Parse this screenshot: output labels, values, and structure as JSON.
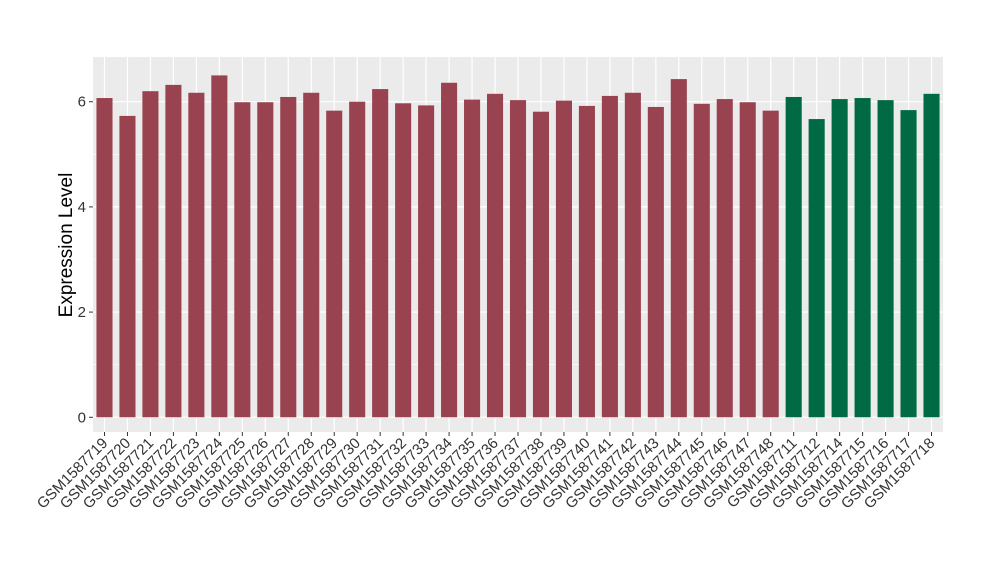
{
  "chart_data": {
    "type": "bar",
    "ylabel": "Expression Level",
    "xlabel": "",
    "ylim": [
      -0.28,
      6.85
    ],
    "yticks": [
      0,
      2,
      4,
      6
    ],
    "grid": true,
    "panel_background": "#EBEBEB",
    "grid_color": "#FFFFFF",
    "colors": {
      "group1": "#9A4350",
      "group2": "#006A44"
    },
    "categories": [
      "GSM1587719",
      "GSM1587720",
      "GSM1587721",
      "GSM1587722",
      "GSM1587723",
      "GSM1587724",
      "GSM1587725",
      "GSM1587726",
      "GSM1587727",
      "GSM1587728",
      "GSM1587729",
      "GSM1587730",
      "GSM1587731",
      "GSM1587732",
      "GSM1587733",
      "GSM1587734",
      "GSM1587735",
      "GSM1587736",
      "GSM1587737",
      "GSM1587738",
      "GSM1587739",
      "GSM1587740",
      "GSM1587741",
      "GSM1587742",
      "GSM1587743",
      "GSM1587744",
      "GSM1587745",
      "GSM1587746",
      "GSM1587747",
      "GSM1587748",
      "GSM1587711",
      "GSM1587712",
      "GSM1587714",
      "GSM1587715",
      "GSM1587716",
      "GSM1587717",
      "GSM1587718"
    ],
    "values": [
      6.07,
      5.73,
      6.2,
      6.32,
      6.17,
      6.5,
      5.99,
      5.99,
      6.09,
      6.17,
      5.83,
      6.0,
      6.24,
      5.97,
      5.93,
      6.36,
      6.04,
      6.15,
      6.03,
      5.81,
      6.02,
      5.92,
      6.11,
      6.17,
      5.9,
      6.43,
      5.96,
      6.05,
      5.99,
      5.83,
      6.09,
      5.67,
      6.05,
      6.07,
      6.03,
      5.84,
      6.15
    ],
    "groups": [
      "group1",
      "group1",
      "group1",
      "group1",
      "group1",
      "group1",
      "group1",
      "group1",
      "group1",
      "group1",
      "group1",
      "group1",
      "group1",
      "group1",
      "group1",
      "group1",
      "group1",
      "group1",
      "group1",
      "group1",
      "group1",
      "group1",
      "group1",
      "group1",
      "group1",
      "group1",
      "group1",
      "group1",
      "group1",
      "group1",
      "group2",
      "group2",
      "group2",
      "group2",
      "group2",
      "group2",
      "group2"
    ]
  }
}
